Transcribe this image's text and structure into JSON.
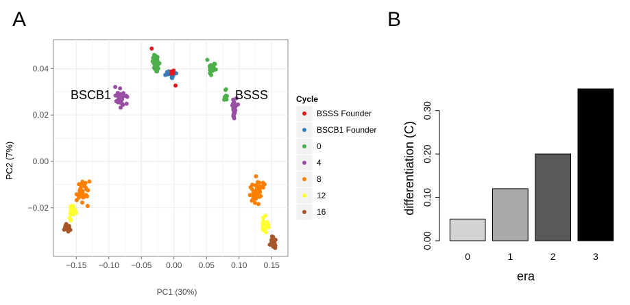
{
  "panels": {
    "a_letter": "A",
    "b_letter": "B"
  },
  "chart_data": [
    {
      "type": "scatter",
      "xlabel": "PC1 (30%)",
      "ylabel": "PC2 (7%)",
      "xlim": [
        -0.185,
        0.175
      ],
      "ylim": [
        -0.041,
        0.0525
      ],
      "xticks": [
        -0.15,
        -0.1,
        -0.05,
        0.0,
        0.05,
        0.1,
        0.15
      ],
      "xtick_labels": [
        "−0.15",
        "−0.10",
        "−0.05",
        "0.00",
        "0.05",
        "0.10",
        "0.15"
      ],
      "yticks": [
        -0.02,
        0.0,
        0.02,
        0.04
      ],
      "ytick_labels": [
        "−0.02",
        "0.00",
        "0.02",
        "0.04"
      ],
      "grid": true,
      "legend_title": "Cycle",
      "legend_position": "right",
      "annotations": [
        {
          "text": "BSCB1",
          "x": -0.133,
          "y": 0.03
        },
        {
          "text": "BSSS",
          "x": 0.111,
          "y": 0.03
        }
      ],
      "series": [
        {
          "name": "BSSS Founder",
          "color": "#e41a1c",
          "clusters": [
            {
              "cx": -0.003,
              "cy": 0.0385,
              "sx": 0.003,
              "sy": 0.0007,
              "n": 6
            },
            {
              "cx": -0.033,
              "cy": 0.0485,
              "sx": 0.001,
              "sy": 0.0003,
              "n": 1
            },
            {
              "cx": 0.003,
              "cy": 0.0325,
              "sx": 0.001,
              "sy": 0.0003,
              "n": 1
            }
          ]
        },
        {
          "name": "BSCB1 Founder",
          "color": "#377eb8",
          "clusters": [
            {
              "cx": -0.005,
              "cy": 0.037,
              "sx": 0.007,
              "sy": 0.0018,
              "n": 14
            }
          ]
        },
        {
          "name": "0",
          "color": "#4daf4a",
          "clusters": [
            {
              "cx": -0.028,
              "cy": 0.0425,
              "sx": 0.005,
              "sy": 0.0035,
              "n": 28
            },
            {
              "cx": 0.058,
              "cy": 0.0405,
              "sx": 0.007,
              "sy": 0.003,
              "n": 24
            },
            {
              "cx": 0.08,
              "cy": 0.0285,
              "sx": 0.004,
              "sy": 0.0025,
              "n": 8
            }
          ]
        },
        {
          "name": "4",
          "color": "#984ea3",
          "clusters": [
            {
              "cx": -0.083,
              "cy": 0.028,
              "sx": 0.009,
              "sy": 0.0045,
              "n": 30
            },
            {
              "cx": 0.092,
              "cy": 0.022,
              "sx": 0.004,
              "sy": 0.004,
              "n": 24
            }
          ]
        },
        {
          "name": "8",
          "color": "#ff7f00",
          "clusters": [
            {
              "cx": -0.14,
              "cy": -0.0125,
              "sx": 0.009,
              "sy": 0.005,
              "n": 36
            },
            {
              "cx": 0.128,
              "cy": -0.013,
              "sx": 0.01,
              "sy": 0.005,
              "n": 44
            }
          ]
        },
        {
          "name": "12",
          "color": "#ffff33",
          "clusters": [
            {
              "cx": -0.156,
              "cy": -0.0215,
              "sx": 0.005,
              "sy": 0.003,
              "n": 26
            },
            {
              "cx": 0.141,
              "cy": -0.027,
              "sx": 0.005,
              "sy": 0.003,
              "n": 26
            }
          ]
        },
        {
          "name": "16",
          "color": "#a65628",
          "clusters": [
            {
              "cx": -0.164,
              "cy": -0.0285,
              "sx": 0.005,
              "sy": 0.0018,
              "n": 22
            },
            {
              "cx": 0.152,
              "cy": -0.0345,
              "sx": 0.003,
              "sy": 0.0022,
              "n": 20
            }
          ]
        }
      ]
    },
    {
      "type": "bar",
      "categories": [
        "0",
        "1",
        "2",
        "3"
      ],
      "values": [
        0.05,
        0.12,
        0.2,
        0.35
      ],
      "colors": [
        "#d3d3d3",
        "#a9a9a9",
        "#595959",
        "#000000"
      ],
      "xlabel": "era",
      "ylabel": "differentiation (C)",
      "ylim": [
        0,
        0.35
      ],
      "yticks": [
        0.0,
        0.1,
        0.2,
        0.3
      ],
      "ytick_labels": [
        "0.00",
        "0.10",
        "0.20",
        "0.30"
      ]
    }
  ]
}
